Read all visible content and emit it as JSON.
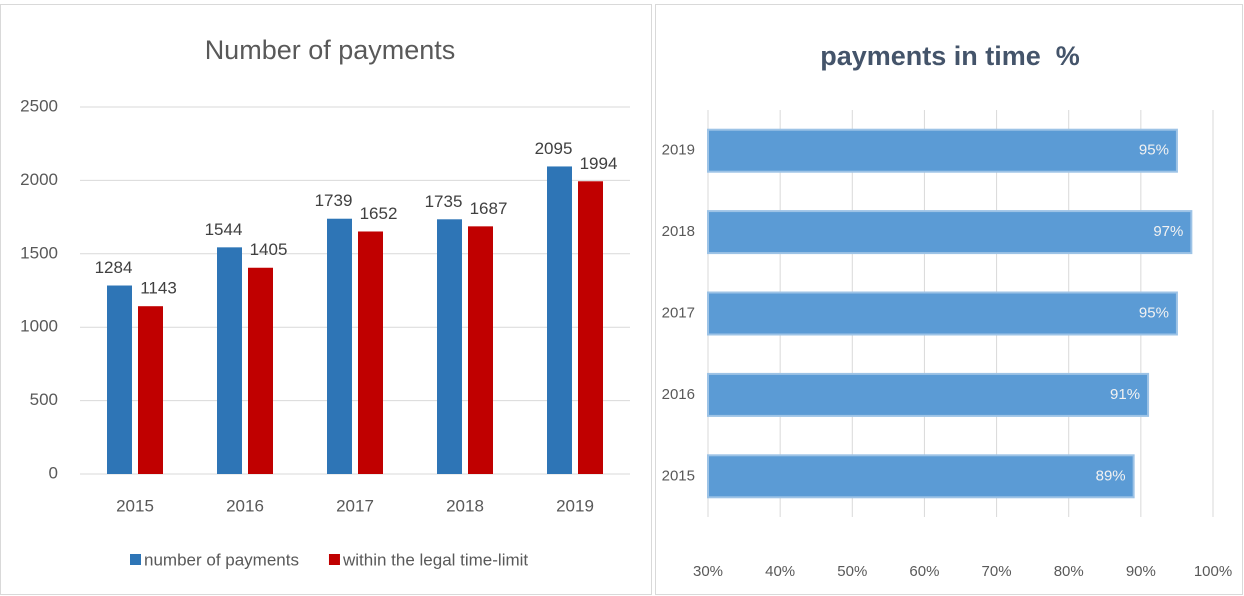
{
  "chart_data": [
    {
      "type": "bar",
      "title": "Number of payments",
      "categories": [
        "2015",
        "2016",
        "2017",
        "2018",
        "2019"
      ],
      "series": [
        {
          "name": "number of payments",
          "color": "#2e75b6",
          "values": [
            1284,
            1544,
            1739,
            1735,
            2095
          ]
        },
        {
          "name": "within the legal time-limit",
          "color": "#c00000",
          "values": [
            1143,
            1405,
            1652,
            1687,
            1994
          ]
        }
      ],
      "ylim": [
        0,
        2500
      ],
      "yticks": [
        0,
        500,
        1000,
        1500,
        2000,
        2500
      ],
      "grid": true,
      "legend": "bottom"
    },
    {
      "type": "barh",
      "title": "payments in time  %",
      "categories": [
        "2015",
        "2016",
        "2017",
        "2018",
        "2019"
      ],
      "values": [
        89,
        91,
        95,
        97,
        95
      ],
      "value_labels": [
        "89%",
        "91%",
        "95%",
        "97%",
        "95%"
      ],
      "color": "#5b9bd5",
      "xlim": [
        30,
        100
      ],
      "xticks": [
        {
          "value": 30,
          "label": "30%"
        },
        {
          "value": 40,
          "label": "40%"
        },
        {
          "value": 50,
          "label": "50%"
        },
        {
          "value": 60,
          "label": "60%"
        },
        {
          "value": 70,
          "label": "70%"
        },
        {
          "value": 80,
          "label": "80%"
        },
        {
          "value": 90,
          "label": "90%"
        },
        {
          "value": 100,
          "label": "100%"
        }
      ],
      "grid": true
    }
  ]
}
